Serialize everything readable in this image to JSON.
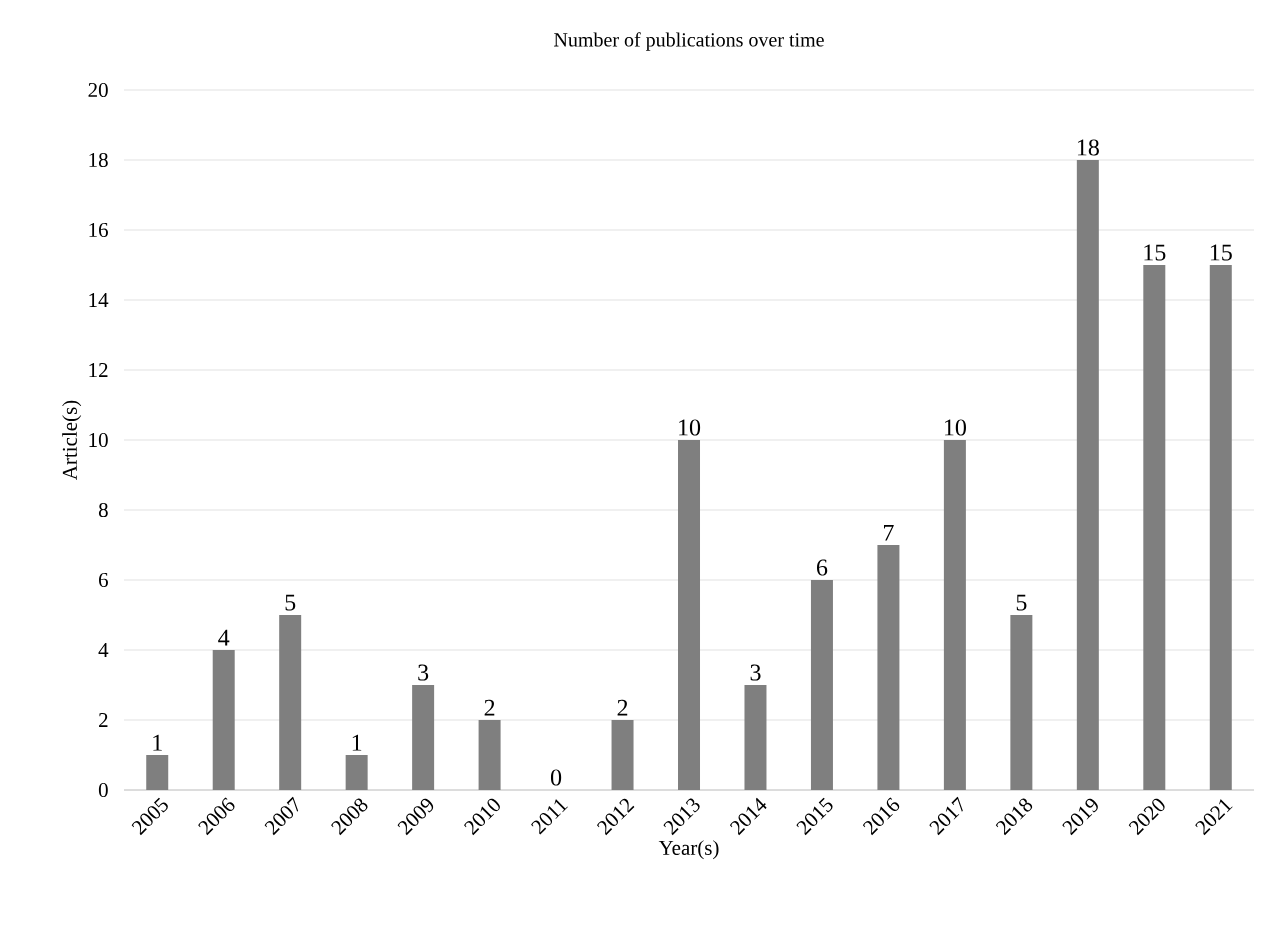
{
  "chart_data": {
    "type": "bar",
    "title": "Number of publications over time",
    "xlabel": "Year(s)",
    "ylabel": "Article(s)",
    "categories": [
      "2005",
      "2006",
      "2007",
      "2008",
      "2009",
      "2010",
      "2011",
      "2012",
      "2013",
      "2014",
      "2015",
      "2016",
      "2017",
      "2018",
      "2019",
      "2020",
      "2021"
    ],
    "values": [
      1,
      4,
      5,
      1,
      3,
      2,
      0,
      2,
      10,
      3,
      6,
      7,
      10,
      5,
      18,
      15,
      15
    ],
    "color": "#7f7f7f",
    "ylim": [
      0,
      20
    ],
    "yticks": [
      0,
      2,
      4,
      6,
      8,
      10,
      12,
      14,
      16,
      18,
      20
    ],
    "grid": "y",
    "data_labels": true
  }
}
